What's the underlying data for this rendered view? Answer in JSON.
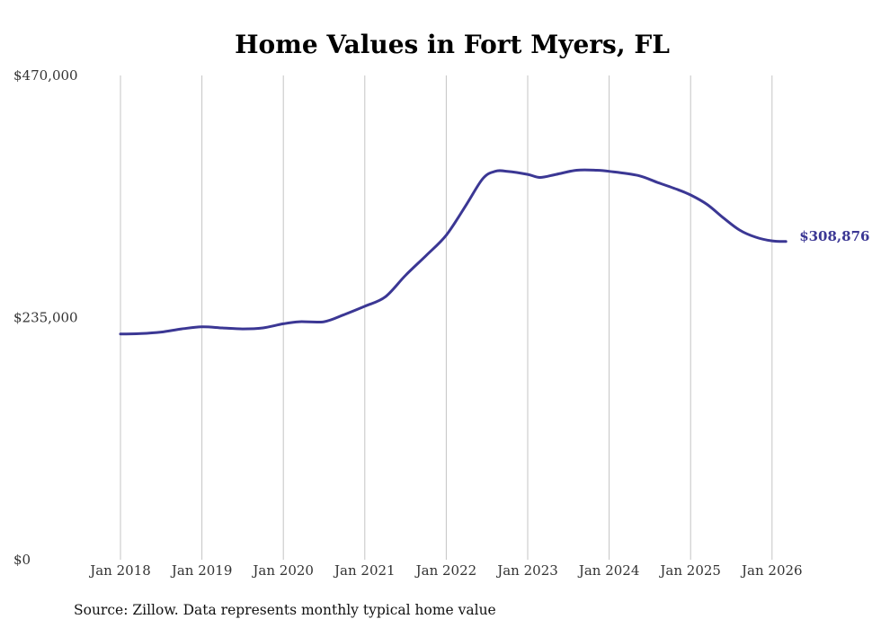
{
  "chart_data": {
    "type": "line",
    "title": "Home Values in Fort Myers, FL",
    "xlabel": "",
    "ylabel": "",
    "ylim": [
      0,
      470000
    ],
    "yticks": [
      0,
      235000,
      470000
    ],
    "ytick_labels": [
      "$0",
      "$235,000",
      "$470,000"
    ],
    "xticks": [
      2018,
      2019,
      2020,
      2021,
      2022,
      2023,
      2024,
      2025,
      2026
    ],
    "xtick_labels": [
      "Jan 2018",
      "Jan 2019",
      "Jan 2020",
      "Jan 2021",
      "Jan 2022",
      "Jan 2023",
      "Jan 2024",
      "Jan 2025",
      "Jan 2026"
    ],
    "grid": "vertical",
    "series": [
      {
        "name": "Typical home value",
        "color": "#3b3794",
        "x": [
          2018.0,
          2018.25,
          2018.5,
          2018.75,
          2019.0,
          2019.25,
          2019.5,
          2019.75,
          2020.0,
          2020.2,
          2020.5,
          2020.75,
          2021.0,
          2021.25,
          2021.5,
          2021.75,
          2022.0,
          2022.25,
          2022.45,
          2022.6,
          2022.75,
          2023.0,
          2023.15,
          2023.35,
          2023.6,
          2023.85,
          2024.0,
          2024.35,
          2024.6,
          2024.85,
          2025.0,
          2025.2,
          2025.4,
          2025.6,
          2025.8,
          2026.0,
          2026.17
        ],
        "values": [
          219000,
          219500,
          221000,
          224000,
          226000,
          225000,
          224000,
          225000,
          229000,
          231000,
          231000,
          238000,
          246000,
          255000,
          276000,
          295000,
          315000,
          345000,
          370000,
          377000,
          377000,
          374000,
          371000,
          374000,
          378000,
          378000,
          377000,
          373000,
          366000,
          359000,
          354000,
          345000,
          332000,
          320000,
          313000,
          309500,
          308876
        ]
      }
    ],
    "end_label": "$308,876",
    "source": "Source: Zillow. Data represents monthly typical home value"
  }
}
